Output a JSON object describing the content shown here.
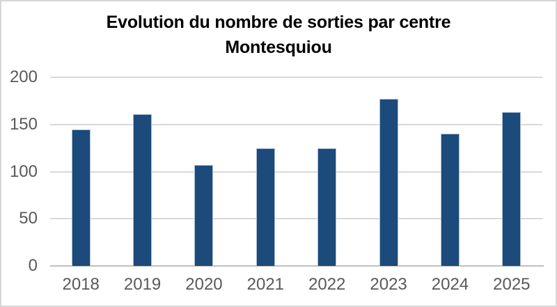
{
  "chart_data": {
    "type": "bar",
    "title": "Evolution du nombre de sorties par centre Montesquiou",
    "title_lines": [
      "Evolution du nombre de sorties par centre",
      "Montesquiou"
    ],
    "categories": [
      "2018",
      "2019",
      "2020",
      "2021",
      "2022",
      "2023",
      "2024",
      "2025"
    ],
    "values": [
      145,
      161,
      107,
      125,
      125,
      177,
      140,
      163
    ],
    "xlabel": "",
    "ylabel": "",
    "ylim": [
      0,
      200
    ],
    "yticks": [
      0,
      50,
      100,
      150,
      200
    ],
    "grid": "horizontal",
    "legend": false,
    "colors": {
      "bar_color": "#1b4a7b",
      "bar_edge_color": "#a9bfd6",
      "gridline_color": "#d9d9d9",
      "axis_color": "#bfbfbf",
      "label_color": "#595959",
      "title_color": "#000000",
      "frame_border": "#d6d6d6",
      "bg": "#ffffff"
    }
  }
}
